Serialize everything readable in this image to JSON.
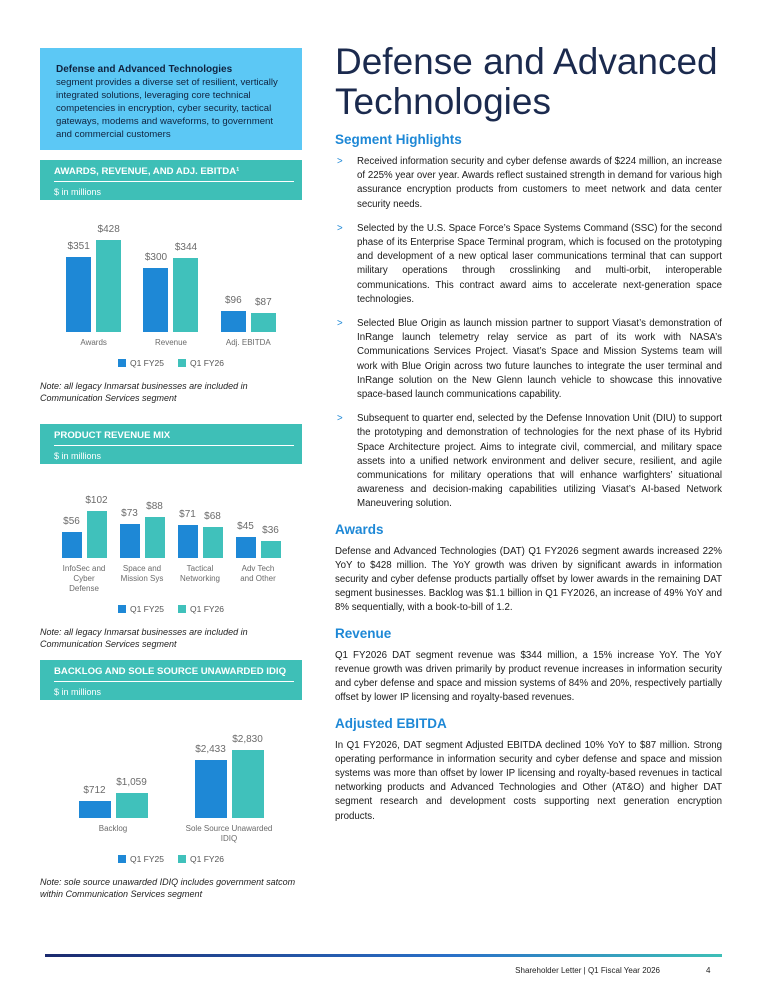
{
  "sidebar": {
    "intro": {
      "title": "Defense and Advanced Technologies",
      "text": "segment provides a diverse set of resilient, vertically integrated solutions, leveraging core technical competencies in encryption, cyber security, tactical gateways, modems and waveforms, to government and commercial customers"
    },
    "charts": [
      {
        "type": "bar",
        "title": "AWARDS, REVENUE, AND ADJ. EBITDA¹",
        "subtitle": "$ in millions",
        "categories": [
          "Awards",
          "Revenue",
          "Adj. EBITDA"
        ],
        "series": [
          {
            "name": "Q1 FY25",
            "color": "#1e88d6",
            "values": [
              351,
              300,
              96
            ],
            "value_labels": [
              "$351",
              "$300",
              "$96"
            ]
          },
          {
            "name": "Q1 FY26",
            "color": "#40c1bb",
            "values": [
              428,
              344,
              87
            ],
            "value_labels": [
              "$428",
              "$344",
              "$87"
            ]
          }
        ],
        "note": "Note: all legacy Inmarsat businesses are included in Communication Services segment"
      },
      {
        "type": "bar",
        "title": "PRODUCT REVENUE MIX",
        "subtitle": "$ in millions",
        "categories": [
          "InfoSec and Cyber Defense",
          "Space and Mission Sys",
          "Tactical Networking",
          "Adv Tech and Other"
        ],
        "series": [
          {
            "name": "Q1 FY25",
            "color": "#1e88d6",
            "values": [
              56,
              73,
              71,
              45
            ],
            "value_labels": [
              "$56",
              "$73",
              "$71",
              "$45"
            ]
          },
          {
            "name": "Q1 FY26",
            "color": "#40c1bb",
            "values": [
              102,
              88,
              68,
              36
            ],
            "value_labels": [
              "$102",
              "$88",
              "$68",
              "$36"
            ]
          }
        ],
        "note": "Note: all legacy Inmarsat businesses are included in Communication Services segment"
      },
      {
        "type": "bar",
        "title": "BACKLOG AND SOLE SOURCE UNAWARDED IDIQ",
        "subtitle": "$ in millions",
        "categories": [
          "Backlog",
          "Sole Source Unawarded IDIQ"
        ],
        "series": [
          {
            "name": "Q1 FY25",
            "color": "#1e88d6",
            "values": [
              712,
              2433
            ],
            "value_labels": [
              "$712",
              "$2,433"
            ]
          },
          {
            "name": "Q1 FY26",
            "color": "#40c1bb",
            "values": [
              1059,
              2830
            ],
            "value_labels": [
              "$1,059",
              "$2,830"
            ]
          }
        ],
        "note": "Note: sole source unawarded IDIQ includes government satcom within Communication Services segment"
      }
    ]
  },
  "main": {
    "title": "Defense and Advanced Technologies",
    "highlights": {
      "heading": "Segment Highlights",
      "bullets": [
        "Received information security and cyber defense awards of $224 million, an increase of 225% year over year.  Awards reflect sustained strength in demand for various high assurance encryption products from customers to meet network and data center security needs.",
        "Selected by the U.S. Space Force’s Space Systems Command (SSC) for the second phase of its Enterprise Space Terminal program, which is focused on the prototyping and development of a new optical laser communications terminal that can support military operations through crosslinking and multi-orbit, interoperable communications. This contract award aims to accelerate next-generation space technologies.",
        "Selected Blue Origin as launch mission partner to support Viasat’s demonstration of InRange launch telemetry relay service as part of its work with NASA’s Communications Services Project. Viasat’s Space and Mission Systems team will work with Blue Origin across two future launches to integrate the user terminal and InRange solution on the New Glenn launch vehicle to showcase this innovative space-based launch communications capability.",
        "Subsequent to quarter end, selected by the Defense Innovation Unit (DIU) to support the prototyping and demonstration of technologies for the next phase of its Hybrid Space Architecture project.  Aims to integrate civil, commercial, and military space assets into a unified network environment and deliver secure, resilient, and agile communications for military operations that will enhance warfighters’ situational awareness and decision-making capabilities utilizing Viasat’s AI-based Network Maneuvering solution."
      ]
    },
    "sections": [
      {
        "heading": "Awards",
        "text": "Defense and Advanced Technologies (DAT) Q1 FY2026 segment awards increased 22% YoY to $428 million.  The YoY growth was driven by significant awards in information security and cyber defense products partially offset by lower awards in the remaining DAT segment businesses.  Backlog was $1.1 billion in Q1 FY2026, an increase of 49% YoY and 8% sequentially, with a book-to-bill of 1.2."
      },
      {
        "heading": "Revenue",
        "text": "Q1 FY2026 DAT segment revenue was $344 million, a 15% increase YoY.  The YoY revenue growth was driven primarily by product revenue increases in information security and cyber defense and space and mission systems of 84% and 20%, respectively partially offset by lower IP licensing and royalty-based revenues."
      },
      {
        "heading": "Adjusted EBITDA",
        "text": "In Q1 FY2026, DAT segment Adjusted EBITDA declined 10% YoY to $87 million. Strong operating performance in information security and cyber defense and space and mission systems was more than offset by lower IP licensing and royalty-based revenues in tactical networking products and Advanced Technologies and Other (AT&O) and higher DAT segment research and development costs supporting next generation encryption products."
      }
    ]
  },
  "footer": {
    "text": "Shareholder Letter | Q1 Fiscal Year 2026",
    "page": "4"
  }
}
